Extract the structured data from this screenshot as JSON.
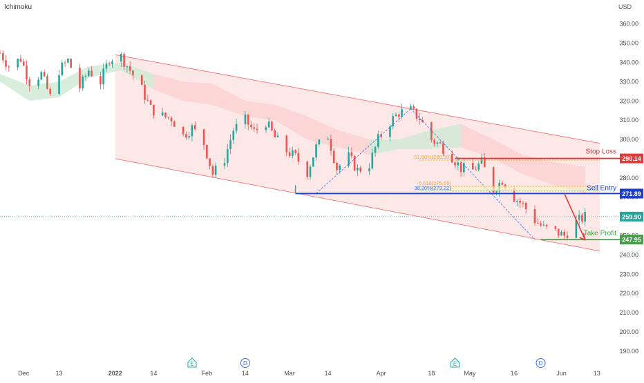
{
  "header": {
    "indicator": "Ichimoku",
    "currency": "USD"
  },
  "colors": {
    "bull": "#26a69a",
    "bear": "#ef5350",
    "channel_fill": "#fde4e4",
    "channel_line": "#f08080",
    "cloud_bull": "#cfe8d3",
    "cloud_bear": "#fbd0d0",
    "stop_loss": "#e53935",
    "sell_entry": "#1f3fc4",
    "take_profit": "#43a047",
    "fib_618": "#f5a623",
    "fib_382": "#3a6ee8",
    "last_price": "#26a69a"
  },
  "chart_data": {
    "type": "candlestick",
    "title": "",
    "xlabel": "",
    "ylabel": "",
    "ylim": [
      186,
      366
    ],
    "y_ticks": [
      190,
      200,
      210,
      220,
      230,
      240,
      250,
      260,
      270,
      280,
      290,
      300,
      310,
      320,
      330,
      340,
      350,
      360
    ],
    "y_tick_labels": [
      "190.00",
      "200.00",
      "210.00",
      "220.00",
      "230.00",
      "240.00",
      "250.00",
      "260.00",
      "270.00",
      "280.00",
      "290.00",
      "300.00",
      "310.00",
      "320.00",
      "330.00",
      "340.00",
      "350.00",
      "360.00"
    ],
    "x_range": [
      "2021-11-23",
      "2022-06-21"
    ],
    "x_ticks": [
      {
        "date": "2021-12-01",
        "label": "Dec"
      },
      {
        "date": "2021-12-13",
        "label": "13"
      },
      {
        "date": "2022-01-01",
        "label": "2022"
      },
      {
        "date": "2022-01-14",
        "label": "14"
      },
      {
        "date": "2022-02-01",
        "label": "Feb"
      },
      {
        "date": "2022-02-14",
        "label": "14"
      },
      {
        "date": "2022-03-01",
        "label": "Mar"
      },
      {
        "date": "2022-03-14",
        "label": "14"
      },
      {
        "date": "2022-04-01",
        "label": "Apr"
      },
      {
        "date": "2022-04-18",
        "label": "18"
      },
      {
        "date": "2022-05-01",
        "label": "May"
      },
      {
        "date": "2022-05-16",
        "label": "16"
      },
      {
        "date": "2022-06-01",
        "label": "Jun"
      },
      {
        "date": "2022-06-13",
        "label": "13"
      }
    ],
    "price_path": [
      [
        "2021-11-23",
        345
      ],
      [
        "2021-11-26",
        338
      ],
      [
        "2021-11-30",
        342
      ],
      [
        "2021-12-03",
        330
      ],
      [
        "2021-12-07",
        334
      ],
      [
        "2021-12-10",
        322
      ],
      [
        "2021-12-13",
        336
      ],
      [
        "2021-12-16",
        341
      ],
      [
        "2021-12-20",
        327
      ],
      [
        "2021-12-23",
        336
      ],
      [
        "2021-12-27",
        330
      ],
      [
        "2021-12-30",
        342
      ],
      [
        "2022-01-03",
        343
      ],
      [
        "2022-01-06",
        336
      ],
      [
        "2022-01-10",
        326
      ],
      [
        "2022-01-13",
        316
      ],
      [
        "2022-01-17",
        312
      ],
      [
        "2022-01-20",
        311
      ],
      [
        "2022-01-24",
        302
      ],
      [
        "2022-01-27",
        306
      ],
      [
        "2022-01-31",
        298
      ],
      [
        "2022-02-03",
        282
      ],
      [
        "2022-02-07",
        290
      ],
      [
        "2022-02-10",
        305
      ],
      [
        "2022-02-14",
        310
      ],
      [
        "2022-02-17",
        304
      ],
      [
        "2022-02-21",
        309
      ],
      [
        "2022-02-24",
        301
      ],
      [
        "2022-02-28",
        294
      ],
      [
        "2022-03-03",
        291
      ],
      [
        "2022-03-07",
        283
      ],
      [
        "2022-03-10",
        296
      ],
      [
        "2022-03-14",
        302
      ],
      [
        "2022-03-17",
        285
      ],
      [
        "2022-03-21",
        291
      ],
      [
        "2022-03-24",
        284
      ],
      [
        "2022-03-28",
        287
      ],
      [
        "2022-03-31",
        300
      ],
      [
        "2022-04-04",
        309
      ],
      [
        "2022-04-07",
        314
      ],
      [
        "2022-04-11",
        315
      ],
      [
        "2022-04-14",
        311
      ],
      [
        "2022-04-18",
        300
      ],
      [
        "2022-04-21",
        297
      ],
      [
        "2022-04-25",
        291
      ],
      [
        "2022-04-28",
        285
      ],
      [
        "2022-05-02",
        284
      ],
      [
        "2022-05-05",
        288
      ],
      [
        "2022-05-09",
        274
      ],
      [
        "2022-05-12",
        279
      ],
      [
        "2022-05-16",
        270
      ],
      [
        "2022-05-19",
        266
      ],
      [
        "2022-05-23",
        258
      ],
      [
        "2022-05-26",
        254
      ],
      [
        "2022-05-30",
        252
      ],
      [
        "2022-06-02",
        250
      ],
      [
        "2022-06-06",
        257
      ],
      [
        "2022-06-09",
        260
      ]
    ],
    "ichimoku_cloud": [
      [
        "2021-11-23",
        334,
        330
      ],
      [
        "2021-12-03",
        328,
        320
      ],
      [
        "2021-12-13",
        330,
        322
      ],
      [
        "2021-12-23",
        338,
        332
      ],
      [
        "2022-01-03",
        340,
        336
      ],
      [
        "2022-01-14",
        334,
        326
      ],
      [
        "2022-01-24",
        330,
        320
      ],
      [
        "2022-02-03",
        329,
        318
      ],
      [
        "2022-02-14",
        320,
        312
      ],
      [
        "2022-02-24",
        318,
        310
      ],
      [
        "2022-03-07",
        312,
        300
      ],
      [
        "2022-03-17",
        305,
        296
      ],
      [
        "2022-03-28",
        300,
        292
      ],
      [
        "2022-04-07",
        300,
        295
      ],
      [
        "2022-04-18",
        305,
        295
      ],
      [
        "2022-04-28",
        308,
        296
      ],
      [
        "2022-05-09",
        300,
        290
      ],
      [
        "2022-05-19",
        292,
        282
      ],
      [
        "2022-05-30",
        288,
        276
      ],
      [
        "2022-06-09",
        286,
        272
      ]
    ],
    "channel": {
      "upper": [
        [
          "2022-01-01",
          344
        ],
        [
          "2022-06-14",
          298
        ]
      ],
      "lower": [
        [
          "2022-01-01",
          290
        ],
        [
          "2022-06-14",
          242
        ]
      ]
    },
    "levels": [
      {
        "name": "Stop Loss",
        "value": 290.14,
        "label": "290.14",
        "color": "#e53935",
        "start": "2022-04-26",
        "text": "Stop Loss"
      },
      {
        "name": "Sell Entry",
        "value": 271.89,
        "label": "271.89",
        "color": "#1f3fc4",
        "start": "2022-03-03",
        "text": "Sell Entry"
      },
      {
        "name": "Take Profit",
        "value": 247.95,
        "label": "247.95",
        "color": "#43a047",
        "start": "2022-05-25",
        "text": "Take Profit"
      }
    ],
    "last_price": {
      "value": 259.9,
      "label": "259.90"
    },
    "fib_labels": [
      {
        "text": "61.80%(289.28)",
        "value": 289.28,
        "color": "#f5a623"
      },
      {
        "text": "0.618(275.66)",
        "value": 275.66,
        "color": "#f5a623"
      },
      {
        "text": "38.20%(273.22)",
        "value": 273.22,
        "color": "#3a6ee8"
      }
    ],
    "events": [
      {
        "date": "2022-01-27",
        "letter": "E"
      },
      {
        "date": "2022-02-14",
        "letter": "D"
      },
      {
        "date": "2022-04-26",
        "letter": "E"
      },
      {
        "date": "2022-05-25",
        "letter": "D"
      }
    ],
    "forecast_arrow": {
      "from": [
        "2022-06-02",
        271.89
      ],
      "to": [
        "2022-06-09",
        247.95
      ]
    }
  }
}
